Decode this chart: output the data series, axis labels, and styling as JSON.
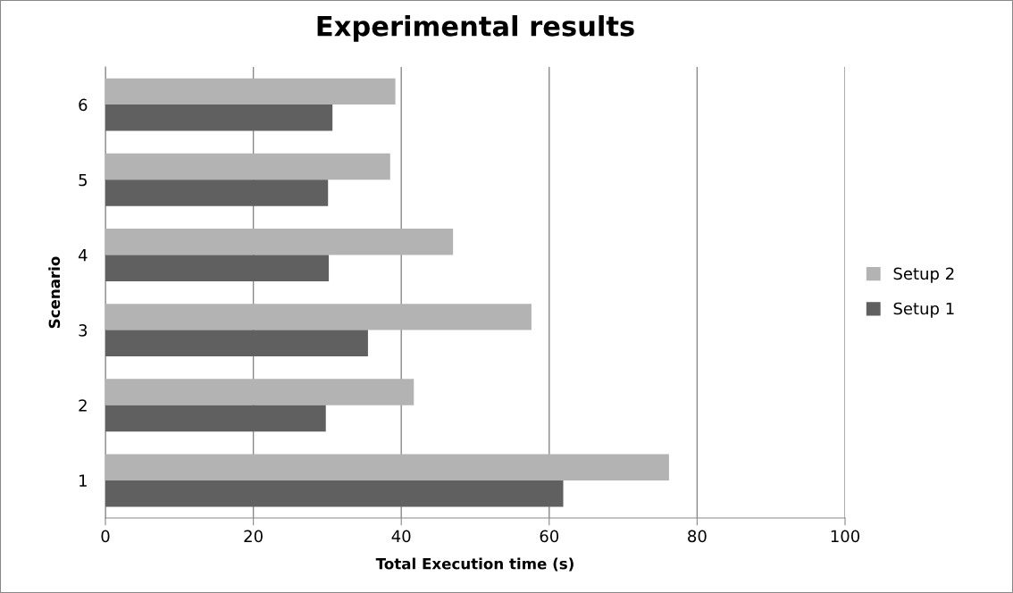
{
  "chart_data": {
    "type": "bar",
    "orientation": "horizontal",
    "title": "Experimental results",
    "xlabel": "Total Execution time (s)",
    "ylabel": "Scenario",
    "categories": [
      "6",
      "5",
      "4",
      "3",
      "2",
      "1"
    ],
    "series": [
      {
        "name": "Setup 2",
        "color": "#b3b3b3",
        "values": [
          39.2,
          38.5,
          47.0,
          57.6,
          41.7,
          76.2
        ]
      },
      {
        "name": "Setup 1",
        "color": "#606060",
        "values": [
          30.7,
          30.1,
          30.2,
          35.5,
          29.8,
          61.9
        ]
      }
    ],
    "xlim": [
      0,
      100
    ],
    "xticks": [
      0,
      20,
      40,
      60,
      80,
      100
    ],
    "grid": "x",
    "legend": "right"
  }
}
